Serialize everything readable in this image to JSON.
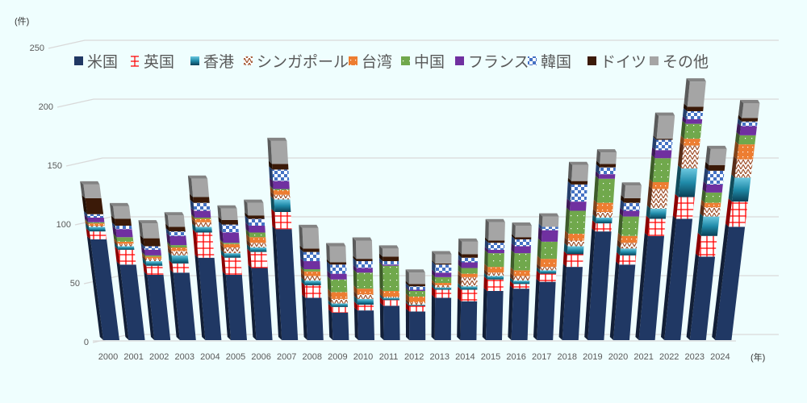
{
  "chart_data": {
    "type": "bar",
    "stacked": true,
    "style": "3d-column",
    "y_unit_label": "(件)",
    "x_unit_label": "(年)",
    "ylim": [
      0,
      250
    ],
    "yticks": [
      "0",
      "50",
      "100",
      "150",
      "200",
      "250"
    ],
    "grid": true,
    "legend_position": "top",
    "categories": [
      "2000",
      "2001",
      "2002",
      "2003",
      "2004",
      "2005",
      "2006",
      "2007",
      "2008",
      "2009",
      "2010",
      "2011",
      "2012",
      "2013",
      "2014",
      "2015",
      "2016",
      "2017",
      "2018",
      "2019",
      "2020",
      "2021",
      "2022",
      "2023",
      "2024"
    ],
    "series": [
      {
        "name": "米国",
        "color": "#203864",
        "pattern": "solid",
        "values": [
          88,
          66,
          57,
          59,
          72,
          57,
          63,
          97,
          37,
          24,
          26,
          30,
          25,
          37,
          34,
          43,
          45,
          51,
          64,
          95,
          66,
          91,
          106,
          73,
          99
        ]
      },
      {
        "name": "英国",
        "color": "#ff0000",
        "pattern": "grid",
        "values": [
          7,
          13,
          8,
          8,
          22,
          15,
          14,
          15,
          11,
          5,
          5,
          5,
          5,
          7,
          10,
          10,
          4,
          7,
          11,
          7,
          8,
          15,
          19,
          18,
          22
        ]
      },
      {
        "name": "香港",
        "color": "#1f8aa8",
        "pattern": "gradient",
        "values": [
          4,
          3,
          4,
          7,
          5,
          4,
          4,
          11,
          4,
          3,
          5,
          2,
          1,
          2,
          3,
          3,
          3,
          3,
          7,
          5,
          6,
          9,
          25,
          17,
          21
        ]
      },
      {
        "name": "シンガポール",
        "color": "#a0522d",
        "pattern": "zigzag",
        "values": [
          1,
          2,
          2,
          4,
          4,
          5,
          4,
          4,
          4,
          4,
          4,
          1,
          2,
          2,
          8,
          3,
          4,
          3,
          5,
          5,
          5,
          17,
          20,
          8,
          16
        ]
      },
      {
        "name": "台湾",
        "color": "#ed7d31",
        "pattern": "dots",
        "values": [
          2,
          2,
          2,
          3,
          3,
          3,
          5,
          4,
          4,
          6,
          5,
          5,
          5,
          2,
          3,
          5,
          5,
          7,
          6,
          8,
          6,
          6,
          6,
          4,
          13
        ]
      },
      {
        "name": "中国",
        "color": "#70a84c",
        "pattern": "dots",
        "values": [
          1,
          4,
          1,
          2,
          1,
          1,
          4,
          1,
          2,
          11,
          14,
          22,
          5,
          5,
          5,
          12,
          15,
          15,
          20,
          21,
          17,
          21,
          13,
          9,
          8
        ]
      },
      {
        "name": "フランス",
        "color": "#7030a0",
        "pattern": "solid",
        "values": [
          4,
          7,
          5,
          8,
          6,
          9,
          6,
          7,
          7,
          5,
          4,
          1,
          1,
          4,
          5,
          3,
          6,
          10,
          8,
          4,
          5,
          7,
          4,
          7,
          8
        ]
      },
      {
        "name": "韓国",
        "color": "#4472c4",
        "pattern": "checker",
        "values": [
          3,
          3,
          3,
          4,
          7,
          7,
          6,
          10,
          8,
          8,
          6,
          3,
          3,
          7,
          4,
          6,
          6,
          3,
          15,
          6,
          7,
          9,
          7,
          12,
          4
        ]
      },
      {
        "name": "ドイツ",
        "color": "#3b1a08",
        "pattern": "solid",
        "values": [
          14,
          6,
          7,
          4,
          5,
          4,
          3,
          5,
          3,
          2,
          2,
          4,
          2,
          1,
          3,
          2,
          2,
          0,
          3,
          3,
          4,
          1,
          4,
          5,
          3
        ]
      },
      {
        "name": "その他",
        "color": "#a5a5a5",
        "pattern": "solid",
        "values": [
          12,
          11,
          13,
          10,
          16,
          10,
          11,
          20,
          18,
          14,
          16,
          7,
          10,
          8,
          11,
          16,
          10,
          9,
          14,
          10,
          11,
          20,
          22,
          14,
          13
        ]
      }
    ]
  }
}
